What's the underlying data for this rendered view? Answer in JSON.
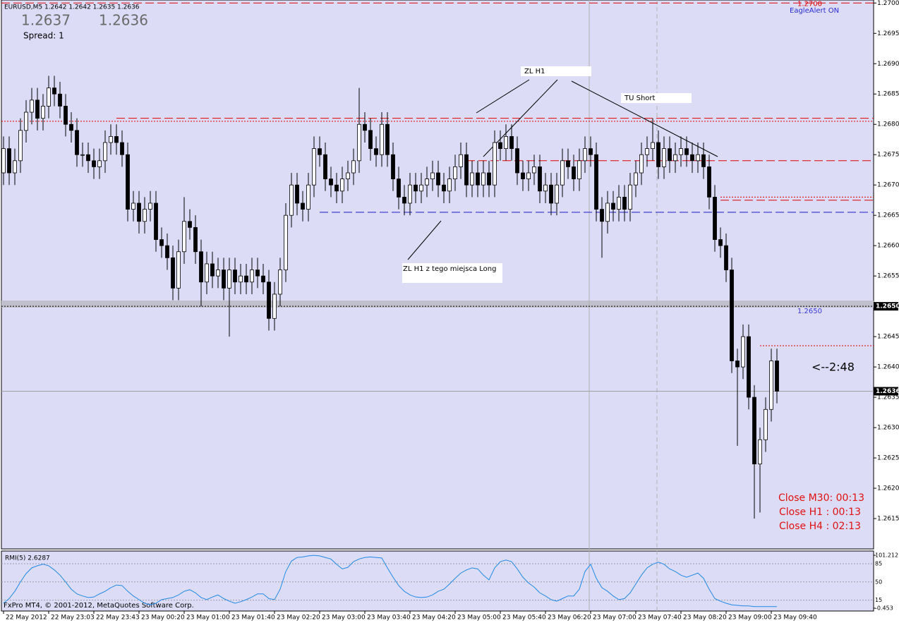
{
  "chart_data": {
    "type": "candlestick",
    "symbol_info": "EURUSD,M5  1.2642 1.2642 1.2635 1.2636",
    "quotes": [
      "1.2637",
      "1.2636"
    ],
    "spread": "Spread:  1",
    "alert": "EagleAlert ON",
    "colors": {
      "bull": "#ffffff",
      "bear": "#000000",
      "wick": "#000000"
    },
    "ylim": [
      1.261,
      1.27005
    ],
    "yticks": [
      {
        "value": 1.27,
        "label": "1.2700"
      },
      {
        "value": 1.2695,
        "label": "1.2695"
      },
      {
        "value": 1.269,
        "label": "1.2690"
      },
      {
        "value": 1.2685,
        "label": "1.2685"
      },
      {
        "value": 1.268,
        "label": "1.2680"
      },
      {
        "value": 1.2675,
        "label": "1.2675"
      },
      {
        "value": 1.267,
        "label": "1.2670"
      },
      {
        "value": 1.2665,
        "label": "1.2665"
      },
      {
        "value": 1.266,
        "label": "1.2660"
      },
      {
        "value": 1.2655,
        "label": "1.2655"
      },
      {
        "value": 1.265,
        "label": "1.2650"
      },
      {
        "value": 1.2645,
        "label": "1.2645"
      },
      {
        "value": 1.264,
        "label": "1.2640"
      },
      {
        "value": 1.2635,
        "label": "1.2635"
      },
      {
        "value": 1.263,
        "label": "1.2630"
      },
      {
        "value": 1.2625,
        "label": "1.2625"
      },
      {
        "value": 1.262,
        "label": "1.2620"
      },
      {
        "value": 1.2615,
        "label": "1.2615"
      }
    ],
    "time_labels": [
      "22 May 2012",
      "22 May 23:03",
      "22 May 23:43",
      "23 May 00:20",
      "23 May 01:00",
      "23 May 01:40",
      "23 May 02:20",
      "23 May 03:00",
      "23 May 03:40",
      "23 May 04:20",
      "23 May 05:00",
      "23 May 05:40",
      "23 May 06:20",
      "23 May 07:00",
      "23 May 07:40",
      "23 May 08:20",
      "23 May 09:00",
      "23 May 09:40"
    ],
    "open": [
      1.2672,
      1.2676,
      1.2672,
      1.2674,
      1.2679,
      1.2682,
      1.2684,
      1.2681,
      1.2683,
      1.2686,
      1.2685,
      1.2683,
      1.268,
      1.2679,
      1.2675,
      1.2675,
      1.2674,
      1.2673,
      1.2674,
      1.2677,
      1.2678,
      1.2677,
      1.2675,
      1.2666,
      1.2667,
      1.2664,
      1.2666,
      1.2667,
      1.2661,
      1.266,
      1.2658,
      1.2653,
      1.2659,
      1.2664,
      1.2663,
      1.2659,
      1.2654,
      1.2657,
      1.2655,
      1.2656,
      1.2653,
      1.2656,
      1.2654,
      1.2655,
      1.2654,
      1.2656,
      1.2655,
      1.2654,
      1.2648,
      1.2652,
      1.2656,
      1.2665,
      1.267,
      1.2667,
      1.2666,
      1.267,
      1.2676,
      1.2675,
      1.2671,
      1.267,
      1.2669,
      1.2671,
      1.2672,
      1.2674,
      1.268,
      1.2679,
      1.2676,
      1.2675,
      1.268,
      1.2675,
      1.2671,
      1.2668,
      1.2667,
      1.267,
      1.2669,
      1.267,
      1.2671,
      1.2672,
      1.267,
      1.2669,
      1.2671,
      1.2673,
      1.2675,
      1.267,
      1.2672,
      1.267,
      1.2672,
      1.267,
      1.2677,
      1.2676,
      1.2678,
      1.2676,
      1.2672,
      1.2671,
      1.2672,
      1.2673,
      1.2669,
      1.267,
      1.2667,
      1.267,
      1.2674,
      1.2673,
      1.2671,
      1.2674,
      1.2676,
      1.2675,
      1.2666,
      1.2664,
      1.2667,
      1.2666,
      1.2668,
      1.2666,
      1.267,
      1.2672,
      1.2675,
      1.2676,
      1.2677,
      1.2673,
      1.2676,
      1.2674,
      1.2675,
      1.2676,
      1.2675,
      1.2674,
      1.2675,
      1.2673,
      1.2668,
      1.2661,
      1.266,
      1.2656,
      1.2641,
      1.264,
      1.2645,
      1.2635,
      1.2624,
      1.2628,
      1.2633,
      1.2641
    ],
    "high": [
      1.2678,
      1.2678,
      1.2676,
      1.2681,
      1.2684,
      1.2686,
      1.2686,
      1.2685,
      1.2688,
      1.2688,
      1.2687,
      1.2685,
      1.2682,
      1.2681,
      1.2677,
      1.2677,
      1.2676,
      1.2676,
      1.2679,
      1.268,
      1.268,
      1.2679,
      1.2677,
      1.2669,
      1.2669,
      1.2668,
      1.2669,
      1.2669,
      1.2663,
      1.2662,
      1.266,
      1.2661,
      1.2668,
      1.2666,
      1.2665,
      1.2661,
      1.2659,
      1.2659,
      1.2658,
      1.2658,
      1.2658,
      1.2658,
      1.2657,
      1.2657,
      1.2658,
      1.2658,
      1.2657,
      1.2656,
      1.2654,
      1.2658,
      1.2667,
      1.2672,
      1.2672,
      1.2669,
      1.2672,
      1.2678,
      1.2678,
      1.2677,
      1.2673,
      1.2672,
      1.2673,
      1.2674,
      1.2676,
      1.2686,
      1.2682,
      1.2681,
      1.2678,
      1.2682,
      1.2682,
      1.2677,
      1.2673,
      1.267,
      1.2672,
      1.2672,
      1.2672,
      1.2673,
      1.2674,
      1.2674,
      1.2672,
      1.2673,
      1.2675,
      1.2677,
      1.2677,
      1.2674,
      1.2674,
      1.2674,
      1.2674,
      1.2679,
      1.2679,
      1.268,
      1.268,
      1.2678,
      1.2674,
      1.2674,
      1.2675,
      1.2675,
      1.2672,
      1.2672,
      1.2672,
      1.2676,
      1.2676,
      1.2675,
      1.2676,
      1.2678,
      1.2678,
      1.2677,
      1.2668,
      1.2669,
      1.2669,
      1.267,
      1.267,
      1.2672,
      1.2674,
      1.2677,
      1.2678,
      1.2681,
      1.2679,
      1.2678,
      1.2678,
      1.2677,
      1.2678,
      1.2678,
      1.2677,
      1.2677,
      1.2677,
      1.2675,
      1.267,
      1.2663,
      1.2662,
      1.2658,
      1.2643,
      1.2647,
      1.2647,
      1.2637,
      1.263,
      1.2635,
      1.2643,
      1.2643
    ],
    "low": [
      1.267,
      1.267,
      1.267,
      1.2672,
      1.2677,
      1.268,
      1.2679,
      1.2679,
      1.2681,
      1.2683,
      1.2681,
      1.2678,
      1.2677,
      1.2673,
      1.2673,
      1.2672,
      1.2671,
      1.2671,
      1.2672,
      1.2675,
      1.2675,
      1.2673,
      1.2664,
      1.2664,
      1.2662,
      1.2662,
      1.2664,
      1.2659,
      1.2658,
      1.2656,
      1.2651,
      1.2651,
      1.2657,
      1.2661,
      1.2657,
      1.265,
      1.2652,
      1.2653,
      1.2653,
      1.2651,
      1.2645,
      1.2652,
      1.2652,
      1.2652,
      1.2652,
      1.2653,
      1.2652,
      1.2646,
      1.2646,
      1.265,
      1.2654,
      1.2663,
      1.2665,
      1.2664,
      1.2664,
      1.2668,
      1.2673,
      1.2669,
      1.2668,
      1.2667,
      1.2667,
      1.2669,
      1.267,
      1.2672,
      1.2677,
      1.2674,
      1.2673,
      1.2673,
      1.2673,
      1.2669,
      1.2666,
      1.2665,
      1.2665,
      1.2667,
      1.2667,
      1.2668,
      1.2669,
      1.2668,
      1.2667,
      1.2667,
      1.2669,
      1.2671,
      1.2668,
      1.2668,
      1.2668,
      1.2668,
      1.2668,
      1.2668,
      1.2674,
      1.2674,
      1.2674,
      1.267,
      1.2669,
      1.2669,
      1.267,
      1.2667,
      1.2667,
      1.2665,
      1.2665,
      1.2668,
      1.2671,
      1.2669,
      1.2669,
      1.2672,
      1.2673,
      1.2664,
      1.2658,
      1.2662,
      1.2664,
      1.2664,
      1.2664,
      1.2664,
      1.2668,
      1.267,
      1.2673,
      1.2674,
      1.2671,
      1.2671,
      1.2672,
      1.2672,
      1.2673,
      1.2673,
      1.2672,
      1.2672,
      1.2671,
      1.2666,
      1.2659,
      1.2658,
      1.2654,
      1.2639,
      1.2627,
      1.2638,
      1.2633,
      1.2615,
      1.2616,
      1.2626,
      1.2631,
      1.2634
    ],
    "close": [
      1.2676,
      1.2672,
      1.2674,
      1.2679,
      1.2682,
      1.2684,
      1.2681,
      1.2683,
      1.2686,
      1.2685,
      1.2683,
      1.268,
      1.2679,
      1.2675,
      1.2675,
      1.2674,
      1.2673,
      1.2674,
      1.2677,
      1.2678,
      1.2677,
      1.2675,
      1.2666,
      1.2667,
      1.2664,
      1.2666,
      1.2667,
      1.2661,
      1.266,
      1.2658,
      1.2653,
      1.2659,
      1.2664,
      1.2663,
      1.2659,
      1.2654,
      1.2657,
      1.2655,
      1.2656,
      1.2653,
      1.2656,
      1.2654,
      1.2655,
      1.2654,
      1.2656,
      1.2655,
      1.2654,
      1.2648,
      1.2652,
      1.2656,
      1.2665,
      1.267,
      1.2667,
      1.2666,
      1.267,
      1.2676,
      1.2675,
      1.2671,
      1.267,
      1.2669,
      1.2671,
      1.2672,
      1.2674,
      1.268,
      1.2679,
      1.2676,
      1.2675,
      1.268,
      1.2675,
      1.2671,
      1.2668,
      1.2667,
      1.267,
      1.2669,
      1.267,
      1.2671,
      1.2672,
      1.267,
      1.2669,
      1.2671,
      1.2673,
      1.2675,
      1.267,
      1.2672,
      1.267,
      1.2672,
      1.267,
      1.2677,
      1.2676,
      1.2678,
      1.2676,
      1.2672,
      1.2671,
      1.2672,
      1.2673,
      1.2669,
      1.267,
      1.2667,
      1.267,
      1.2674,
      1.2673,
      1.2671,
      1.2674,
      1.2676,
      1.2675,
      1.2666,
      1.2664,
      1.2667,
      1.2666,
      1.2668,
      1.2666,
      1.267,
      1.2672,
      1.2675,
      1.2676,
      1.2677,
      1.2673,
      1.2676,
      1.2674,
      1.2675,
      1.2676,
      1.2675,
      1.2674,
      1.2675,
      1.2673,
      1.2668,
      1.2661,
      1.266,
      1.2656,
      1.2641,
      1.264,
      1.2645,
      1.2635,
      1.2624,
      1.2628,
      1.2633,
      1.2641,
      1.2636
    ],
    "levels": [
      {
        "price": 1.27,
        "color": "#e00000",
        "style": "dash",
        "label": "1.2700"
      },
      {
        "price": 1.2681,
        "color": "#e00000",
        "style": "dash"
      },
      {
        "price": 1.26805,
        "color": "#e00000",
        "style": "dot"
      },
      {
        "price": 1.2674,
        "color": "#e00000",
        "style": "dash"
      },
      {
        "price": 1.2668,
        "color": "#e00000",
        "style": "dot"
      },
      {
        "price": 1.26675,
        "color": "#e00000",
        "style": "dash"
      },
      {
        "price": 1.26655,
        "color": "#1c1cc8",
        "style": "dash"
      },
      {
        "price": 1.265,
        "color": "#000000",
        "style": "dot",
        "label": "1.2650",
        "label_color": "#3a3ad6"
      },
      {
        "price": 1.2636,
        "color": "#a0a0a0",
        "style": "solid"
      },
      {
        "price": 1.26435,
        "color": "#e00000",
        "style": "dot"
      }
    ],
    "price_labels": [
      {
        "value": 1.265,
        "label": "1.2650"
      },
      {
        "value": 1.2636,
        "label": "1.2636"
      }
    ],
    "annotations": [
      "ZL H1",
      "TU Short",
      "ZL H1  z tego miejsca Long"
    ],
    "countdown": "<--2:48",
    "timers": [
      "Close M30: 00:13",
      "Close H1 :  00:13",
      "Close H4 :  02:13"
    ],
    "indicator": {
      "label": "RMI(5) 2.6287",
      "color": "#1e8ae6",
      "ylim": [
        -0.453,
        101.212
      ],
      "yticks": [
        101.212,
        85,
        50,
        15,
        -0.453
      ],
      "values": [
        9,
        18,
        32,
        50,
        66,
        77,
        81,
        84,
        81,
        73,
        63,
        50,
        36,
        27,
        23,
        20,
        21,
        27,
        32,
        39,
        44,
        43,
        32,
        23,
        16,
        9,
        6,
        9,
        16,
        18,
        20,
        25,
        32,
        35,
        29,
        20,
        16,
        21,
        25,
        18,
        13,
        9,
        12,
        16,
        21,
        27,
        27,
        18,
        16,
        36,
        70,
        90,
        97,
        98,
        100,
        101,
        100,
        97,
        94,
        84,
        75,
        78,
        89,
        94,
        97,
        98,
        97,
        96,
        77,
        59,
        43,
        32,
        25,
        21,
        20,
        21,
        25,
        32,
        36,
        46,
        57,
        67,
        73,
        77,
        75,
        63,
        54,
        77,
        89,
        92,
        89,
        75,
        59,
        48,
        40,
        29,
        23,
        16,
        13,
        18,
        23,
        23,
        36,
        70,
        84,
        57,
        39,
        32,
        23,
        16,
        18,
        29,
        46,
        63,
        77,
        84,
        88,
        84,
        75,
        70,
        63,
        59,
        63,
        67,
        57,
        36,
        18,
        13,
        9,
        6,
        5,
        4,
        4,
        2.6,
        2.6,
        2.6,
        2.6,
        2.6287
      ]
    },
    "footer": "FxPro MT4, © 2001-2012, MetaQuotes Software Corp."
  }
}
